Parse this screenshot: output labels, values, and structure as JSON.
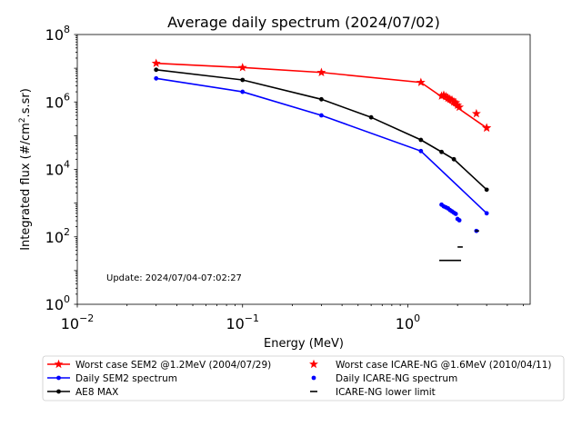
{
  "chart_data": {
    "type": "line",
    "title": "Average daily spectrum (2024/07/02)",
    "xlabel": "Energy (MeV)",
    "ylabel_main": "Integrated flux (#/cm",
    "ylabel_sup": "2",
    "ylabel_tail": ".s.sr)",
    "x_scale": "log",
    "y_scale": "log",
    "xlim": [
      0.01,
      5.5
    ],
    "ylim": [
      1,
      100000000
    ],
    "x_ticks": [
      {
        "value": 0.01,
        "base": "10",
        "exp": "−2"
      },
      {
        "value": 0.1,
        "base": "10",
        "exp": "−1"
      },
      {
        "value": 1,
        "base": "10",
        "exp": "0"
      }
    ],
    "y_ticks": [
      {
        "value": 1,
        "base": "10",
        "exp": "0"
      },
      {
        "value": 100,
        "base": "10",
        "exp": "2"
      },
      {
        "value": 10000,
        "base": "10",
        "exp": "4"
      },
      {
        "value": 1000000,
        "base": "10",
        "exp": "6"
      },
      {
        "value": 100000000,
        "base": "10",
        "exp": "8"
      }
    ],
    "grid": false,
    "annotation": "Update: 2024/07/04-07:02:27",
    "legend_placement": "bottom, outside plot",
    "series": [
      {
        "name": "Worst case SEM2 @1.2MeV (2004/07/29)",
        "color": "#ff0000",
        "style": "line",
        "marker": "star",
        "x": [
          0.03,
          0.1,
          0.3,
          1.2,
          3.0
        ],
        "y": [
          14000000,
          10500000,
          7500000,
          3800000,
          170000
        ]
      },
      {
        "name": "Daily SEM2 spectrum",
        "color": "#0000ff",
        "style": "line",
        "marker": "dot",
        "x": [
          0.03,
          0.1,
          0.3,
          1.2,
          3.0
        ],
        "y": [
          5000000,
          2000000,
          400000,
          35000,
          500
        ]
      },
      {
        "name": "AE8 MAX",
        "color": "#000000",
        "style": "line",
        "marker": "dot",
        "x": [
          0.03,
          0.1,
          0.3,
          0.6,
          1.2,
          1.6,
          1.9,
          3.0
        ],
        "y": [
          9000000,
          4500000,
          1200000,
          350000,
          75000,
          33000,
          20000,
          2500
        ]
      },
      {
        "name": "Worst case ICARE-NG @1.6MeV (2010/04/11)",
        "color": "#ff0000",
        "style": "points",
        "marker": "star",
        "x": [
          1.6,
          1.65,
          1.7,
          1.75,
          1.8,
          1.85,
          1.9,
          1.95,
          2.0,
          2.05,
          2.6,
          3.0
        ],
        "y": [
          1500000,
          1600000,
          1450000,
          1300000,
          1200000,
          1150000,
          1000000,
          950000,
          800000,
          700000,
          450000,
          170000
        ]
      },
      {
        "name": "Daily ICARE-NG spectrum",
        "color": "#0000ff",
        "style": "points",
        "marker": "dot",
        "x": [
          1.6,
          1.65,
          1.7,
          1.75,
          1.8,
          1.85,
          1.9,
          1.95,
          2.0,
          2.05,
          2.6
        ],
        "y": [
          900,
          800,
          750,
          700,
          620,
          570,
          520,
          480,
          340,
          310,
          150
        ]
      },
      {
        "name": "ICARE-NG lower limit",
        "color": "#000000",
        "style": "segments",
        "marker": "dash",
        "segments": [
          {
            "x0": 1.55,
            "x1": 2.1,
            "y": 20
          },
          {
            "x0": 2.0,
            "x1": 2.15,
            "y": 50
          },
          {
            "x0": 2.55,
            "x1": 2.7,
            "y": 150
          }
        ]
      }
    ]
  }
}
